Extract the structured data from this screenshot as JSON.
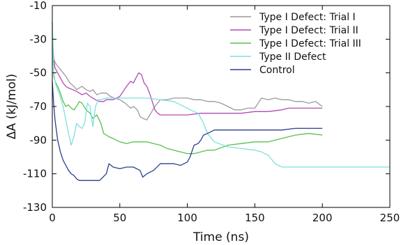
{
  "chart_data": {
    "type": "line",
    "title": "",
    "xlabel": "Time (ns)",
    "ylabel": "ΔA (kJ/mol)",
    "xlim": [
      0,
      250
    ],
    "ylim": [
      -130,
      -10
    ],
    "xticks": [
      0,
      50,
      100,
      150,
      200,
      250
    ],
    "yticks": [
      -10,
      -30,
      -50,
      -70,
      -90,
      -110,
      -130
    ],
    "grid": false,
    "legend_position": "top-right",
    "series": [
      {
        "name": "Type I Defect: Trial I",
        "color": "#9a9a9a",
        "x": [
          0,
          1,
          3,
          5,
          8,
          10,
          13,
          16,
          18,
          20,
          22,
          25,
          28,
          30,
          33,
          36,
          40,
          43,
          46,
          50,
          54,
          58,
          60,
          63,
          65,
          67,
          70,
          73,
          76,
          80,
          85,
          90,
          95,
          100,
          105,
          110,
          115,
          120,
          125,
          130,
          135,
          140,
          145,
          150,
          155,
          160,
          165,
          170,
          175,
          180,
          185,
          190,
          195,
          200
        ],
        "y": [
          -25,
          -42,
          -45,
          -47,
          -50,
          -52,
          -56,
          -58,
          -60,
          -59,
          -58,
          -60,
          -61,
          -60,
          -63,
          -62,
          -62,
          -64,
          -65,
          -66,
          -68,
          -71,
          -70,
          -72,
          -76,
          -77,
          -78,
          -74,
          -70,
          -66,
          -66,
          -65,
          -65,
          -65,
          -66,
          -66,
          -67,
          -67,
          -68,
          -70,
          -72,
          -72,
          -71,
          -71,
          -65,
          -66,
          -65,
          -66,
          -66,
          -67,
          -67,
          -68,
          -67,
          -70
        ]
      },
      {
        "name": "Type I Defect: Trial II",
        "color": "#b24ab4",
        "x": [
          0,
          1,
          2,
          4,
          6,
          8,
          10,
          12,
          15,
          18,
          20,
          22,
          25,
          28,
          30,
          32,
          35,
          38,
          40,
          45,
          50,
          55,
          58,
          60,
          62,
          64,
          66,
          68,
          70,
          72,
          74,
          76,
          78,
          80,
          85,
          90,
          100,
          110,
          120,
          130,
          140,
          150,
          160,
          170,
          175,
          180,
          190,
          200
        ],
        "y": [
          -30,
          -42,
          -47,
          -50,
          -53,
          -56,
          -58,
          -59,
          -60,
          -61,
          -62,
          -63,
          -62,
          -64,
          -65,
          -66,
          -67,
          -67,
          -66,
          -66,
          -64,
          -58,
          -55,
          -56,
          -53,
          -50,
          -51,
          -56,
          -58,
          -62,
          -67,
          -72,
          -74,
          -75,
          -75,
          -75,
          -75,
          -74,
          -74,
          -74,
          -74,
          -73,
          -73,
          -72,
          -71,
          -71,
          -71,
          -71
        ]
      },
      {
        "name": "Type I Defect: Trial III",
        "color": "#55c04f",
        "x": [
          0,
          1,
          2,
          4,
          6,
          8,
          10,
          12,
          14,
          16,
          18,
          20,
          22,
          25,
          28,
          30,
          33,
          36,
          38,
          40,
          42,
          45,
          50,
          55,
          60,
          65,
          70,
          75,
          80,
          85,
          90,
          95,
          100,
          105,
          110,
          115,
          120,
          130,
          140,
          150,
          160,
          170,
          180,
          190,
          200
        ],
        "y": [
          -20,
          -50,
          -55,
          -58,
          -62,
          -67,
          -70,
          -69,
          -71,
          -72,
          -70,
          -67,
          -68,
          -72,
          -74,
          -77,
          -75,
          -80,
          -86,
          -87,
          -88,
          -89,
          -91,
          -92,
          -91,
          -91,
          -91,
          -92,
          -93,
          -95,
          -96,
          -97,
          -98,
          -98,
          -97,
          -96,
          -96,
          -93,
          -92,
          -91,
          -91,
          -89,
          -87,
          -86,
          -87
        ]
      },
      {
        "name": "Type II Defect",
        "color": "#7ee0dc",
        "x": [
          0,
          1,
          3,
          5,
          8,
          10,
          12,
          14,
          16,
          18,
          20,
          22,
          24,
          26,
          28,
          30,
          32,
          34,
          36,
          40,
          45,
          50,
          60,
          70,
          80,
          90,
          95,
          100,
          105,
          108,
          110,
          112,
          115,
          120,
          130,
          140,
          150,
          155,
          160,
          165,
          170,
          180,
          200,
          220,
          240,
          250
        ],
        "y": [
          -20,
          -52,
          -58,
          -62,
          -70,
          -78,
          -86,
          -93,
          -88,
          -80,
          -82,
          -83,
          -80,
          -68,
          -70,
          -82,
          -70,
          -66,
          -66,
          -65,
          -65,
          -65,
          -65,
          -65,
          -66,
          -67,
          -69,
          -71,
          -73,
          -74,
          -77,
          -80,
          -86,
          -91,
          -94,
          -95,
          -96,
          -97,
          -99,
          -104,
          -106,
          -106,
          -106,
          -106,
          -106,
          -106
        ]
      },
      {
        "name": "Control",
        "color": "#2b3e8f",
        "x": [
          0,
          1,
          2,
          4,
          6,
          8,
          10,
          12,
          14,
          16,
          18,
          20,
          25,
          30,
          35,
          40,
          42,
          45,
          50,
          55,
          60,
          65,
          67,
          70,
          75,
          80,
          85,
          90,
          95,
          100,
          102,
          105,
          108,
          110,
          112,
          115,
          120,
          130,
          140,
          150,
          160,
          170,
          180,
          190,
          200
        ],
        "y": [
          -55,
          -68,
          -78,
          -90,
          -97,
          -102,
          -105,
          -108,
          -110,
          -111,
          -113,
          -114,
          -114,
          -114,
          -114,
          -110,
          -104,
          -106,
          -107,
          -106,
          -106,
          -108,
          -112,
          -110,
          -108,
          -104,
          -104,
          -104,
          -105,
          -103,
          -100,
          -93,
          -92,
          -90,
          -87,
          -86,
          -84,
          -84,
          -84,
          -84,
          -84,
          -84,
          -83,
          -83,
          -83
        ]
      }
    ]
  }
}
